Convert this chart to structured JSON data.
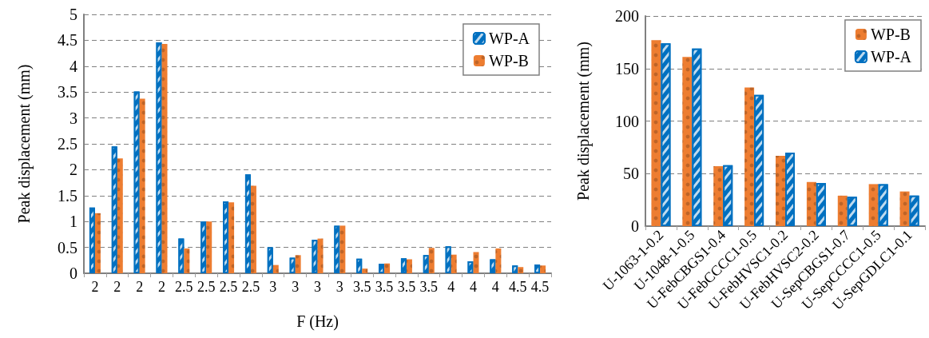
{
  "chart_data": [
    {
      "type": "bar",
      "xlabel": "F (Hz)",
      "ylabel": "Peak displacement (mm)",
      "categories": [
        "2",
        "2",
        "2",
        "2",
        "2.5",
        "2.5",
        "2.5",
        "2.5",
        "3",
        "3",
        "3",
        "3",
        "3.5",
        "3.5",
        "3.5",
        "3.5",
        "4",
        "4",
        "4",
        "4.5",
        "4.5"
      ],
      "series": [
        {
          "name": "WP-A",
          "color": "#0070c0",
          "values": [
            1.27,
            2.45,
            3.51,
            4.46,
            0.67,
            1.0,
            1.39,
            1.91,
            0.5,
            0.3,
            0.65,
            0.92,
            0.28,
            0.18,
            0.29,
            0.35,
            0.52,
            0.23,
            0.27,
            0.15,
            0.17
          ]
        },
        {
          "name": "WP-B",
          "color": "#ed7d31",
          "values": [
            1.16,
            2.22,
            3.37,
            4.43,
            0.48,
            1.0,
            1.37,
            1.69,
            0.16,
            0.35,
            0.67,
            0.92,
            0.09,
            0.19,
            0.27,
            0.49,
            0.36,
            0.41,
            0.48,
            0.12,
            0.15
          ]
        }
      ],
      "ylim": [
        0,
        5
      ],
      "yticks": [
        0,
        0.5,
        1,
        1.5,
        2,
        2.5,
        3,
        3.5,
        4,
        4.5,
        5
      ],
      "grid": "y",
      "legend": "top right"
    },
    {
      "type": "bar",
      "ylabel": "Peak displacement (mm)",
      "categories": [
        "U-1063-1-0.2",
        "U-1048-1-0.5",
        "U-FebCBGS1-0.4",
        "U-FebCCCC1-0.5",
        "U-FebHVSC1-0.2",
        "U-FebHVSC2-0.2",
        "U-SepCBGS1-0.7",
        "U-SepCCCC1-0.5",
        "U-SepGDLC1-0.1"
      ],
      "series": [
        {
          "name": "WP-B",
          "color": "#ed7d31",
          "values": [
            177,
            161,
            57,
            132,
            67,
            42,
            29,
            40,
            33
          ]
        },
        {
          "name": "WP-A",
          "color": "#0070c0",
          "values": [
            174,
            169,
            58,
            125,
            70,
            41,
            28,
            40,
            29
          ]
        }
      ],
      "ylim": [
        0,
        200
      ],
      "yticks": [
        0,
        50,
        100,
        150,
        200
      ],
      "grid": "y",
      "legend": "top right"
    }
  ]
}
